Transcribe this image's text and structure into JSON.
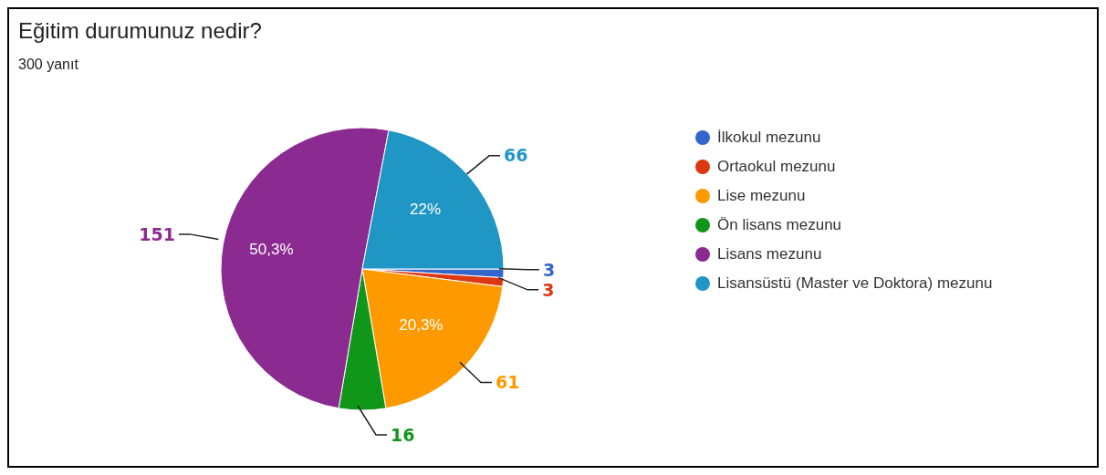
{
  "chart_data": {
    "type": "pie",
    "title": "Eğitim durumunuz nedir?",
    "subtitle": "300 yanıt",
    "categories": [
      "İlkokul mezunu",
      "Ortaokul mezunu",
      "Lise mezunu",
      "Ön lisans mezunu",
      "Lisans mezunu",
      "Lisansüstü (Master ve Doktora) mezunu"
    ],
    "values": [
      3,
      3,
      61,
      16,
      151,
      66
    ],
    "colors": [
      "#3366cc",
      "#dc3912",
      "#ff9900",
      "#109618",
      "#8b2b91",
      "#1f96c4"
    ],
    "annotations": [
      "20,3%",
      "50,3%",
      "22%"
    ],
    "data_labels": true,
    "legend": "right"
  }
}
